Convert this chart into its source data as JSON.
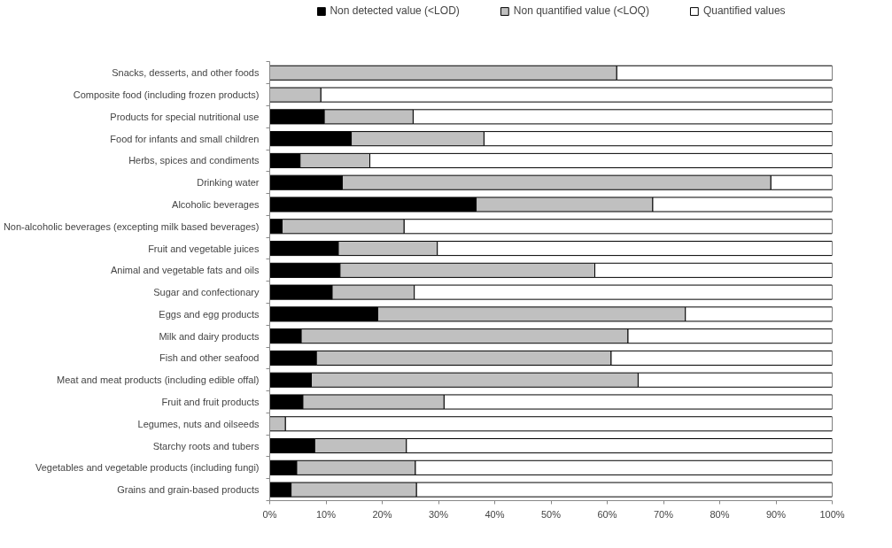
{
  "chart_data": {
    "type": "bar",
    "orientation": "horizontal",
    "stacked": true,
    "categories": [
      "Snacks, desserts, and other foods",
      "Composite food (including frozen products)",
      "Products for special nutritional use",
      "Food for infants and small children",
      "Herbs, spices and condiments",
      "Drinking water",
      "Alcoholic beverages",
      "Non-alcoholic beverages (excepting milk based beverages)",
      "Fruit and vegetable juices",
      "Animal and vegetable fats and oils",
      "Sugar and confectionary",
      "Eggs and egg products",
      "Milk and dairy products",
      "Fish and other seafood",
      "Meat and meat products (including edible offal)",
      "Fruit and fruit products",
      "Legumes, nuts and oilseeds",
      "Starchy roots and tubers",
      "Vegetables and vegetable products (including fungi)",
      "Grains and grain-based products"
    ],
    "series": [
      {
        "name": "Non detected value (<LOD)",
        "color": "#000000",
        "values": [
          0,
          0,
          9.7,
          14.5,
          5.4,
          12.9,
          36.7,
          2.2,
          12.2,
          12.5,
          11.1,
          19.2,
          5.6,
          8.3,
          7.4,
          5.9,
          0,
          8.0,
          4.8,
          3.8
        ]
      },
      {
        "name": "Non quantified value (<LOQ)",
        "color": "#c0c0c0",
        "values": [
          61.7,
          9.1,
          15.8,
          23.6,
          12.4,
          76.2,
          31.4,
          21.7,
          17.6,
          45.3,
          14.6,
          54.7,
          58.1,
          52.4,
          58.1,
          25.1,
          2.8,
          16.3,
          21.1,
          22.3
        ]
      },
      {
        "name": "Quantified values",
        "color": "#ffffff",
        "values": [
          38.3,
          90.9,
          74.5,
          61.9,
          82.2,
          10.9,
          31.9,
          76.1,
          70.2,
          42.2,
          74.3,
          26.1,
          36.3,
          39.3,
          34.5,
          69.0,
          97.2,
          75.7,
          74.1,
          73.9
        ]
      }
    ],
    "xlim": [
      0,
      100
    ],
    "xticks": [
      {
        "value": 0,
        "label": "0%"
      },
      {
        "value": 10,
        "label": "10%"
      },
      {
        "value": 20,
        "label": "20%"
      },
      {
        "value": 30,
        "label": "30%"
      },
      {
        "value": 40,
        "label": "40%"
      },
      {
        "value": 50,
        "label": "50%"
      },
      {
        "value": 60,
        "label": "60%"
      },
      {
        "value": 70,
        "label": "70%"
      },
      {
        "value": 80,
        "label": "80%"
      },
      {
        "value": 90,
        "label": "90%"
      },
      {
        "value": 100,
        "label": "100%"
      }
    ],
    "grid": false,
    "legend": "top"
  }
}
